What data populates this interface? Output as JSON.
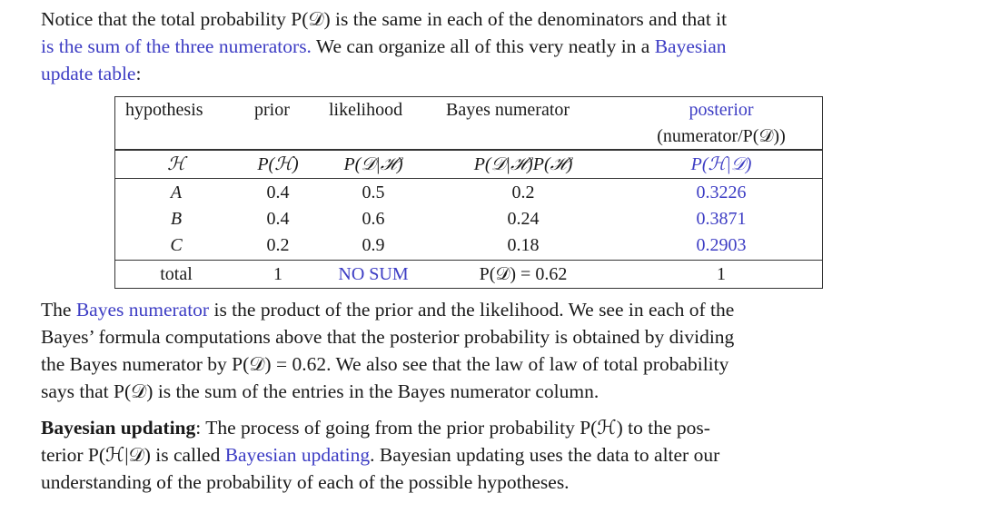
{
  "para1": {
    "line1": "Notice that the total probability P(𝒟) is the same in each of the denominators and that it",
    "line2_blue": "is the sum of the three numerators.",
    "line2_rest": " We can organize all of this very neatly in a ",
    "line2_link": "Bayesian",
    "line3_link": "update table",
    "line3_rest": ":"
  },
  "table": {
    "header": {
      "hypothesis": "hypothesis",
      "prior": "prior",
      "likelihood": "likelihood",
      "bayes_numerator": "Bayes numerator",
      "posterior": "posterior",
      "posterior_sub": "(numerator/P(𝒟))"
    },
    "symbols": {
      "hypothesis": "ℋ",
      "prior": "P(ℋ)",
      "likelihood": "P(𝒟|ℋ)",
      "bayes_numerator": "P(𝒟|ℋ)P(ℋ)",
      "posterior": "P(ℋ|𝒟)"
    },
    "rows": [
      {
        "h": "A",
        "prior": "0.4",
        "likelihood": "0.5",
        "numerator": "0.2",
        "posterior": "0.3226"
      },
      {
        "h": "B",
        "prior": "0.4",
        "likelihood": "0.6",
        "numerator": "0.24",
        "posterior": "0.3871"
      },
      {
        "h": "C",
        "prior": "0.2",
        "likelihood": "0.9",
        "numerator": "0.18",
        "posterior": "0.2903"
      }
    ],
    "total": {
      "label": "total",
      "prior": "1",
      "likelihood": "NO SUM",
      "numerator": "P(𝒟) = 0.62",
      "posterior": "1"
    }
  },
  "para2": {
    "l1_a": "The ",
    "l1_link": "Bayes numerator",
    "l1_b": " is the product of the prior and the likelihood. We see in each of the",
    "l2": "Bayes’ formula computations above that the posterior probability is obtained by dividing",
    "l3": "the Bayes numerator by P(𝒟) = 0.62. We also see that the law of law of total probability",
    "l4": "says that P(𝒟) is the sum of the entries in the Bayes numerator column."
  },
  "para3": {
    "bold": "Bayesian updating",
    "l1_rest": ": The process of going from the prior probability P(ℋ) to the pos-",
    "l2_a": "terior P(ℋ|𝒟) is called ",
    "l2_link": "Bayesian updating",
    "l2_b": ". Bayesian updating uses the data to alter our",
    "l3": "understanding of the probability of each of the possible hypotheses."
  },
  "colors": {
    "text": "#1a1a1a",
    "link": "#3d3dc4",
    "rule": "#333333"
  }
}
